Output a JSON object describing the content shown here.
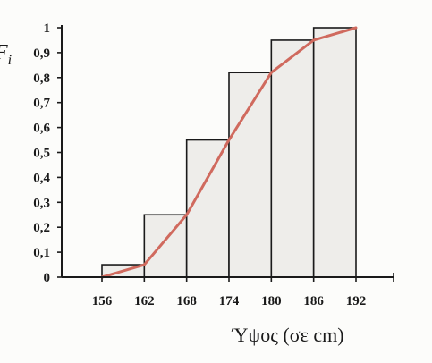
{
  "chart_data": {
    "type": "bar",
    "title": "",
    "xlabel": "Ύψος (σε cm)",
    "ylabel": "F",
    "ylabel_sub": "i",
    "x_ticks": [
      "156",
      "162",
      "168",
      "174",
      "180",
      "186",
      "192"
    ],
    "y_ticks": [
      "0",
      "0,1",
      "0,2",
      "0,3",
      "0,4",
      "0,5",
      "0,6",
      "0,7",
      "0,8",
      "0,9",
      "1"
    ],
    "xlim": [
      156,
      192
    ],
    "ylim": [
      0,
      1
    ],
    "bins": [
      {
        "from": 156,
        "to": 162,
        "value": 0.05
      },
      {
        "from": 162,
        "to": 168,
        "value": 0.25
      },
      {
        "from": 168,
        "to": 174,
        "value": 0.55
      },
      {
        "from": 174,
        "to": 180,
        "value": 0.82
      },
      {
        "from": 180,
        "to": 186,
        "value": 0.95
      },
      {
        "from": 186,
        "to": 192,
        "value": 1.0
      }
    ],
    "series": [
      {
        "type": "line",
        "x": [
          156,
          162,
          168,
          174,
          180,
          186,
          192
        ],
        "values": [
          0,
          0.05,
          0.25,
          0.55,
          0.82,
          0.95,
          1.0
        ]
      }
    ],
    "grid": false,
    "colors": {
      "bar_fill": "#eeedea",
      "bar_stroke": "#1a1a1a",
      "line": "#d06a5e"
    }
  }
}
